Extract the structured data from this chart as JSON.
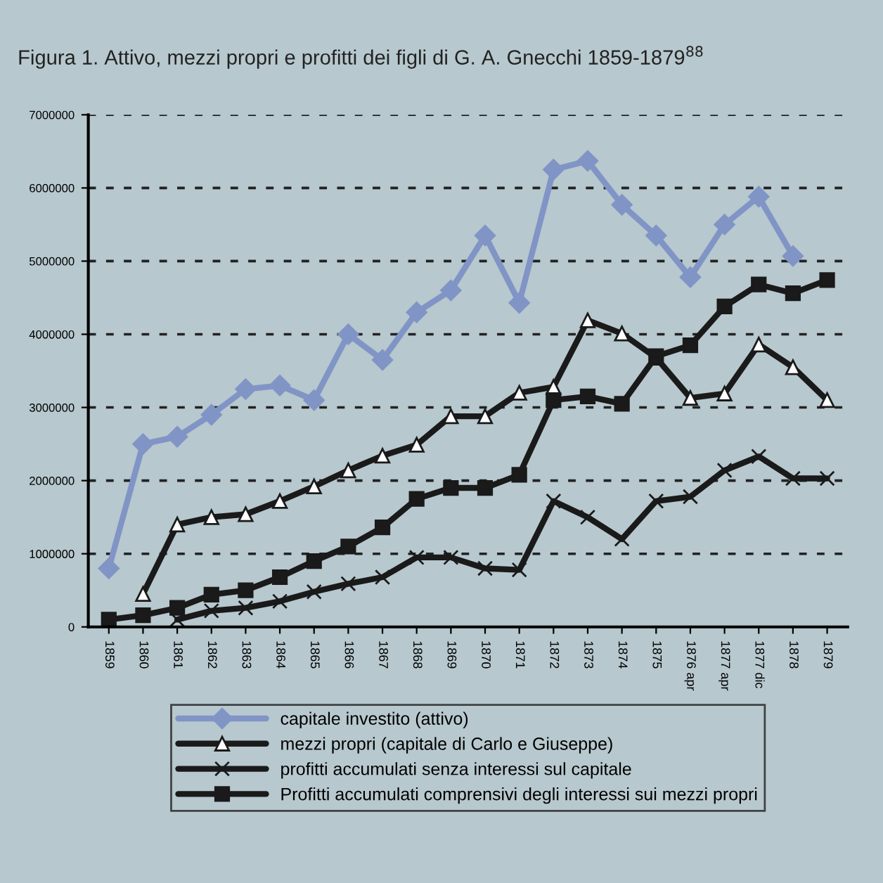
{
  "chart_data": {
    "type": "line",
    "title": "Figura 1. Attivo, mezzi propri e profitti dei figli di G. A. Gnecchi 1859-1879$^{88}$",
    "categories": [
      "1859",
      "1860",
      "1861",
      "1862",
      "1863",
      "1864",
      "1865",
      "1866",
      "1867",
      "1868",
      "1869",
      "1870",
      "1871",
      "1872",
      "1873",
      "1874",
      "1875",
      "1876 apr",
      "1877 apr",
      "1877 dic",
      "1878",
      "1879"
    ],
    "series": [
      {
        "name": "capitale investito (attivo)",
        "color": "#8194c6",
        "marker": "diamond",
        "values": [
          800000,
          2500000,
          2600000,
          2900000,
          3250000,
          3300000,
          3100000,
          4000000,
          3650000,
          4300000,
          4600000,
          5350000,
          4430000,
          6250000,
          6370000,
          5770000,
          5350000,
          4780000,
          5500000,
          5880000,
          5070000,
          null
        ]
      },
      {
        "name": "mezzi propri (capitale di Carlo e Giuseppe)",
        "color": "#1a1a1a",
        "marker": "triangle",
        "values": [
          null,
          450000,
          1400000,
          1500000,
          1540000,
          1720000,
          1920000,
          2140000,
          2340000,
          2490000,
          2880000,
          2880000,
          3200000,
          3280000,
          4190000,
          4010000,
          3680000,
          3130000,
          3190000,
          3860000,
          3550000,
          3100000
        ]
      },
      {
        "name": "profitti accumulati senza interessi sul capitale",
        "color": "#1a1a1a",
        "marker": "cross",
        "values": [
          null,
          null,
          100000,
          220000,
          260000,
          350000,
          480000,
          590000,
          680000,
          950000,
          950000,
          800000,
          780000,
          1720000,
          1500000,
          1200000,
          1720000,
          1780000,
          2140000,
          2330000,
          2030000,
          2030000
        ]
      },
      {
        "name": "Profitti accumulati comprensivi degli interessi sui mezzi propri",
        "color": "#1a1a1a",
        "marker": "square",
        "values": [
          100000,
          160000,
          260000,
          440000,
          500000,
          680000,
          900000,
          1100000,
          1360000,
          1750000,
          1900000,
          1900000,
          2080000,
          3100000,
          3150000,
          3050000,
          3700000,
          3850000,
          4380000,
          4680000,
          4560000,
          4740000
        ]
      }
    ],
    "ylim": [
      0,
      7000000
    ],
    "yticks": [
      0,
      1000000,
      2000000,
      3000000,
      4000000,
      5000000,
      6000000,
      7000000
    ],
    "grid": "y",
    "legend": "bottom",
    "line_style": "solid"
  }
}
